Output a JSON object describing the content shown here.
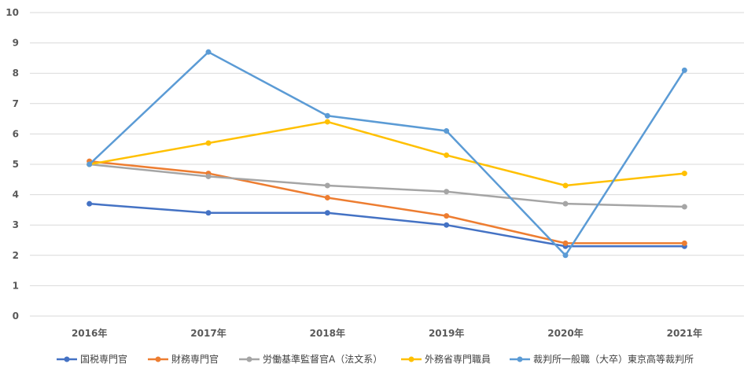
{
  "chart_data": {
    "type": "line",
    "categories": [
      "2016年",
      "2017年",
      "2018年",
      "2019年",
      "2020年",
      "2021年"
    ],
    "ylim": [
      0,
      10
    ],
    "yticks": [
      0,
      1,
      2,
      3,
      4,
      5,
      6,
      7,
      8,
      9,
      10
    ],
    "grid": true,
    "legend": "bottom",
    "series": [
      {
        "name": "国税専門官",
        "color": "#4472C4",
        "values": [
          3.7,
          3.4,
          3.4,
          3.0,
          2.3,
          2.3
        ]
      },
      {
        "name": "財務専門官",
        "color": "#ED7D31",
        "values": [
          5.1,
          4.7,
          3.9,
          3.3,
          2.4,
          2.4
        ]
      },
      {
        "name": "労働基準監督官A（法文系）",
        "color": "#A5A5A5",
        "values": [
          5.0,
          4.6,
          4.3,
          4.1,
          3.7,
          3.6
        ]
      },
      {
        "name": "外務省専門職員",
        "color": "#FFC000",
        "values": [
          5.0,
          5.7,
          6.4,
          5.3,
          4.3,
          4.7
        ]
      },
      {
        "name": "裁判所一般職（大卒）東京高等裁判所",
        "color": "#5B9BD5",
        "values": [
          5.0,
          8.7,
          6.6,
          6.1,
          2.0,
          8.1
        ]
      }
    ]
  }
}
